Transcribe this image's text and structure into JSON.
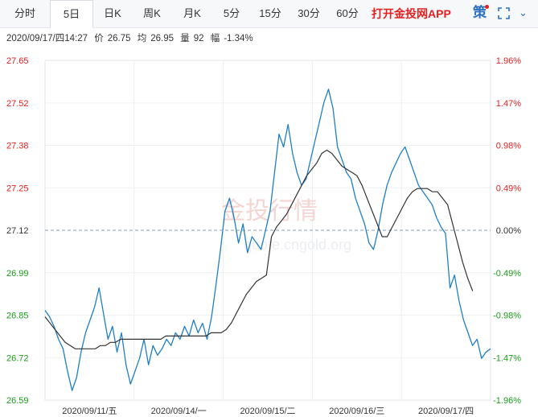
{
  "tabs": [
    "分时",
    "5日",
    "日K",
    "周K",
    "月K",
    "5分",
    "15分",
    "30分",
    "60分"
  ],
  "active_tab": "5日",
  "promo": "打开金投网APP",
  "ce_label": "策",
  "more_label": "⌄",
  "info": {
    "datetime": "2020/09/17/四14:27",
    "price_label": "价",
    "price": "26.75",
    "avg_label": "均",
    "avg": "26.95",
    "vol_label": "量",
    "vol": "92",
    "chg_label": "幅",
    "chg": "-1.34%"
  },
  "watermark": {
    "cn": "金投行情",
    "url": "quote.cngold.org"
  },
  "colors": {
    "up": "#e4201f",
    "down": "#1a9a1a",
    "neutral": "#333333",
    "price_line": "#1f7fc4",
    "avg_line": "#333333"
  },
  "chart_data": {
    "type": "line",
    "base_price": 27.12,
    "ylim": [
      26.59,
      27.65
    ],
    "y_ticks": [
      "27.65",
      "27.52",
      "27.38",
      "27.25",
      "27.12",
      "26.99",
      "26.85",
      "26.72",
      "26.59"
    ],
    "pct_ticks": [
      "1.96%",
      "1.47%",
      "0.98%",
      "0.49%",
      "0.00%",
      "-0.49%",
      "-0.98%",
      "-1.47%",
      "-1.96%"
    ],
    "x_labels": [
      "2020/09/11/五",
      "2020/09/14/一",
      "2020/09/15/二",
      "2020/09/16/三",
      "2020/09/17/四"
    ],
    "series": [
      {
        "key": "price",
        "values": [
          26.87,
          26.85,
          26.82,
          26.78,
          26.75,
          26.68,
          26.62,
          26.66,
          26.74,
          26.8,
          26.84,
          26.88,
          26.94,
          26.86,
          26.78,
          26.82,
          26.74,
          26.8,
          26.7,
          26.64,
          26.68,
          26.72,
          26.78,
          26.7,
          26.76,
          26.73,
          26.75,
          26.78,
          26.76,
          26.8,
          26.78,
          26.82,
          26.79,
          26.84,
          26.8,
          26.83,
          26.78,
          26.85,
          26.95,
          27.06,
          27.18,
          27.22,
          27.16,
          27.08,
          27.14,
          27.05,
          27.1,
          27.08,
          27.06,
          27.12,
          27.18,
          27.3,
          27.42,
          27.38,
          27.45,
          27.36,
          27.3,
          27.26,
          27.28,
          27.34,
          27.4,
          27.46,
          27.52,
          27.56,
          27.5,
          27.38,
          27.34,
          27.3,
          27.28,
          27.22,
          27.18,
          27.14,
          27.08,
          27.06,
          27.12,
          27.2,
          27.26,
          27.3,
          27.33,
          27.36,
          27.38,
          27.34,
          27.3,
          27.26,
          27.24,
          27.22,
          27.2,
          27.16,
          27.13,
          27.11,
          26.94,
          26.98,
          26.9,
          26.84,
          26.8,
          26.76,
          26.78,
          26.72,
          26.74,
          26.75
        ],
        "name": ""
      },
      {
        "key": "avg",
        "values": [
          26.85,
          26.83,
          26.81,
          26.79,
          26.77,
          26.76,
          26.75,
          26.75,
          26.75,
          26.75,
          26.75,
          26.76,
          26.76,
          26.77,
          26.77,
          26.78,
          26.78,
          26.78,
          26.78,
          26.78,
          26.78,
          26.78,
          26.78,
          26.78,
          26.79,
          26.79,
          26.79,
          26.79,
          26.79,
          26.79,
          26.79,
          26.79,
          26.79,
          26.8,
          26.8,
          26.8,
          26.81,
          26.83,
          26.86,
          26.89,
          26.92,
          26.94,
          26.96,
          26.97,
          26.98,
          27.1,
          27.13,
          27.15,
          27.17,
          27.2,
          27.23,
          27.26,
          27.29,
          27.31,
          27.33,
          27.36,
          27.37,
          27.36,
          27.34,
          27.32,
          27.31,
          27.3,
          27.29,
          27.26,
          27.22,
          27.18,
          27.14,
          27.1,
          27.1,
          27.13,
          27.16,
          27.19,
          27.22,
          27.24,
          27.25,
          27.25,
          27.25,
          27.24,
          27.24,
          27.22,
          27.2,
          27.14,
          27.08,
          27.02,
          26.97,
          26.93
        ],
        "name": ""
      }
    ],
    "price_x_extent": [
      0,
      1
    ],
    "avg_x_extent": [
      0,
      0.96
    ],
    "grid": true,
    "zero_line": "dashed"
  }
}
